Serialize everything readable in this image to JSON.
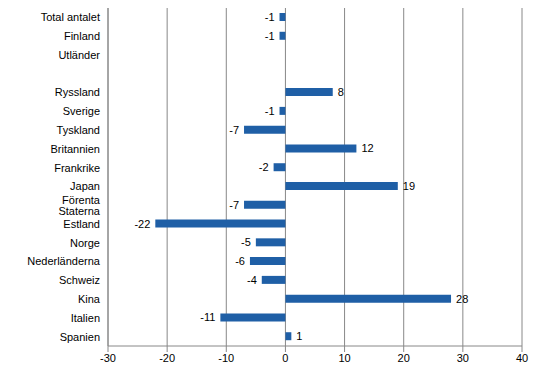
{
  "chart_data": {
    "type": "bar",
    "orientation": "horizontal",
    "categories": [
      "Total antalet",
      "Finland",
      "Utländer",
      null,
      "Ryssland",
      "Sverige",
      "Tyskland",
      "Britannien",
      "Frankrike",
      "Japan",
      "Förenta Staterna",
      "Estland",
      "Norge",
      "Nederländerna",
      "Schweiz",
      "Kina",
      "Italien",
      "Spanien"
    ],
    "values": [
      -1,
      -1,
      0,
      null,
      8,
      -1,
      -7,
      12,
      -2,
      19,
      -7,
      -22,
      -5,
      -6,
      -4,
      28,
      -11,
      1
    ],
    "color": "#1f5fa6",
    "xlim": [
      -30,
      40
    ],
    "xticks": [
      -30,
      -20,
      -10,
      0,
      10,
      20,
      30,
      40
    ],
    "grid": true,
    "data_labels": true
  }
}
